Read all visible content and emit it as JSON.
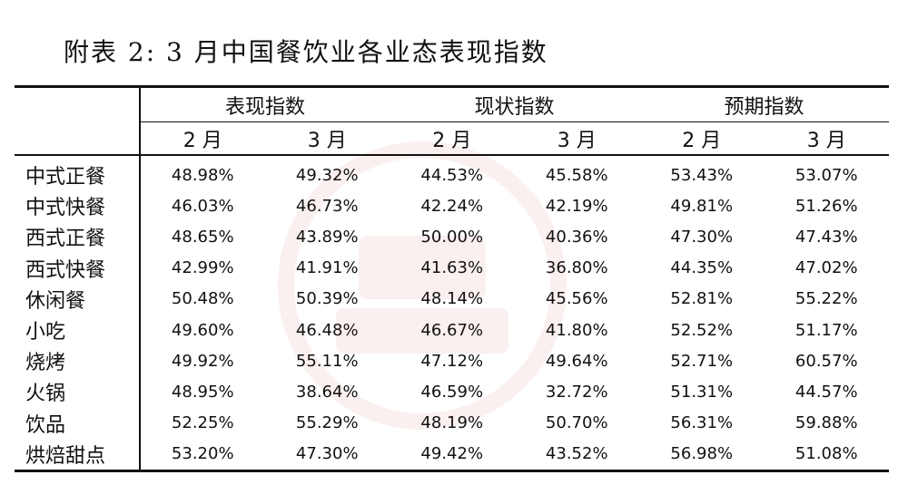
{
  "title": "附表 2: 3 月中国餐饮业各业态表现指数",
  "groups": [
    "表现指数",
    "现状指数",
    "预期指数"
  ],
  "months": [
    "2 月",
    "3 月"
  ],
  "rows": [
    {
      "label": "中式正餐",
      "values": [
        "48.98%",
        "49.32%",
        "44.53%",
        "45.58%",
        "53.43%",
        "53.07%"
      ]
    },
    {
      "label": "中式快餐",
      "values": [
        "46.03%",
        "46.73%",
        "42.24%",
        "42.19%",
        "49.81%",
        "51.26%"
      ]
    },
    {
      "label": "西式正餐",
      "values": [
        "48.65%",
        "43.89%",
        "50.00%",
        "40.36%",
        "47.30%",
        "47.43%"
      ]
    },
    {
      "label": "西式快餐",
      "values": [
        "42.99%",
        "41.91%",
        "41.63%",
        "36.80%",
        "44.35%",
        "47.02%"
      ]
    },
    {
      "label": "休闲餐",
      "values": [
        "50.48%",
        "50.39%",
        "48.14%",
        "45.56%",
        "52.81%",
        "55.22%"
      ]
    },
    {
      "label": "小吃",
      "values": [
        "49.60%",
        "46.48%",
        "46.67%",
        "41.80%",
        "52.52%",
        "51.17%"
      ]
    },
    {
      "label": "烧烤",
      "values": [
        "49.92%",
        "55.11%",
        "47.12%",
        "49.64%",
        "52.71%",
        "60.57%"
      ]
    },
    {
      "label": "火锅",
      "values": [
        "48.95%",
        "38.64%",
        "46.59%",
        "32.72%",
        "51.31%",
        "44.57%"
      ]
    },
    {
      "label": "饮品",
      "values": [
        "52.25%",
        "55.29%",
        "48.19%",
        "50.70%",
        "56.31%",
        "59.88%"
      ]
    },
    {
      "label": "烘焙甜点",
      "values": [
        "53.20%",
        "47.30%",
        "49.42%",
        "43.52%",
        "56.98%",
        "51.08%"
      ]
    }
  ]
}
